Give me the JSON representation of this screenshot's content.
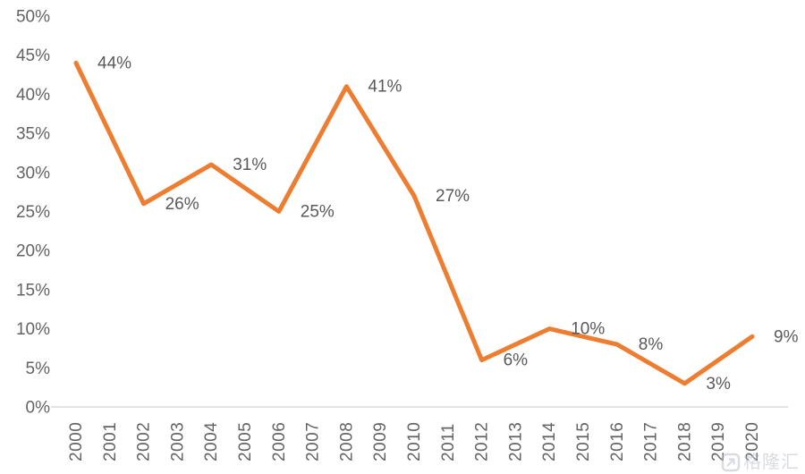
{
  "watermark": {
    "text": "格隆汇"
  },
  "chart_data": {
    "type": "line",
    "title": "",
    "xlabel": "",
    "ylabel": "",
    "categories": [
      "2000",
      "2001",
      "2002",
      "2003",
      "2004",
      "2005",
      "2006",
      "2007",
      "2008",
      "2009",
      "2010",
      "2011",
      "2012",
      "2013",
      "2014",
      "2015",
      "2016",
      "2017",
      "2018",
      "2019",
      "2020"
    ],
    "series": [
      {
        "name": "",
        "color": "#ED7D31",
        "data": [
          {
            "x": "2000",
            "y": 44,
            "label": "44%"
          },
          {
            "x": "2002",
            "y": 26,
            "label": "26%"
          },
          {
            "x": "2004",
            "y": 31,
            "label": "31%"
          },
          {
            "x": "2006",
            "y": 25,
            "label": "25%"
          },
          {
            "x": "2008",
            "y": 41,
            "label": "41%"
          },
          {
            "x": "2010",
            "y": 27,
            "label": "27%"
          },
          {
            "x": "2012",
            "y": 6,
            "label": "6%"
          },
          {
            "x": "2014",
            "y": 10,
            "label": "10%"
          },
          {
            "x": "2016",
            "y": 8,
            "label": "8%"
          },
          {
            "x": "2018",
            "y": 3,
            "label": "3%"
          },
          {
            "x": "2020",
            "y": 9,
            "label": "9%"
          }
        ]
      }
    ],
    "ylim": [
      0,
      50
    ],
    "ytick_labels": [
      "0%",
      "5%",
      "10%",
      "15%",
      "20%",
      "25%",
      "30%",
      "35%",
      "40%",
      "45%",
      "50%"
    ],
    "grid": false,
    "legend": false,
    "colors": {
      "line": "#ED7D31",
      "tick_label": "#636363",
      "data_label": "#595959",
      "axis_line": "#D9D9D9"
    }
  }
}
